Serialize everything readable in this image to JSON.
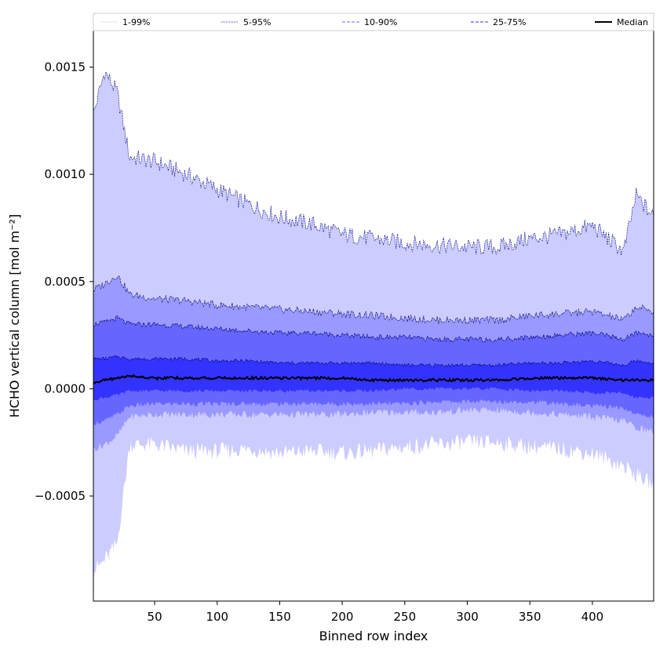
{
  "chart_data": {
    "type": "area",
    "title": "",
    "xlabel": "Binned row index",
    "ylabel": "HCHO vertical column [mol m⁻²]",
    "xlim": [
      1,
      449
    ],
    "ylim": [
      -0.00099,
      0.00167
    ],
    "xticks": [
      50,
      100,
      150,
      200,
      250,
      300,
      350,
      400
    ],
    "xtick_labels": [
      "50",
      "100",
      "150",
      "200",
      "250",
      "300",
      "350",
      "400"
    ],
    "yticks": [
      -0.0005,
      0.0,
      0.0005,
      0.001,
      0.0015
    ],
    "ytick_labels": [
      "−0.0005",
      "0.0000",
      "0.0005",
      "0.0010",
      "0.0015"
    ],
    "grid": false,
    "legend_position": "top",
    "legend": [
      {
        "label": "1-99%",
        "color": "#cccccc",
        "style": "dotted"
      },
      {
        "label": "5-95%",
        "color": "#3333cc",
        "style": "dotted"
      },
      {
        "label": "10-90%",
        "color": "#6666ff",
        "style": "dashed"
      },
      {
        "label": "25-75%",
        "color": "#3333ff",
        "style": "dashed"
      },
      {
        "label": "Median",
        "color": "#000000",
        "style": "solid"
      }
    ],
    "x": [
      1,
      10,
      20,
      30,
      50,
      75,
      100,
      125,
      150,
      175,
      200,
      225,
      250,
      275,
      300,
      325,
      350,
      375,
      400,
      425,
      435,
      449
    ],
    "series": [
      {
        "name": "1-99%",
        "fill": "#ccccff",
        "upper": [
          0.00128,
          0.00148,
          0.00138,
          0.00108,
          0.00106,
          0.001,
          0.00093,
          0.00086,
          0.0008,
          0.00077,
          0.00072,
          0.0007,
          0.00068,
          0.00067,
          0.00066,
          0.00066,
          0.0007,
          0.00072,
          0.00076,
          0.00064,
          0.0009,
          0.0008
        ],
        "lower": [
          -0.00085,
          -0.0008,
          -0.00072,
          -0.00026,
          -0.00026,
          -0.00029,
          -0.00029,
          -0.00028,
          -0.0003,
          -0.00029,
          -0.0003,
          -0.00029,
          -0.00027,
          -0.00026,
          -0.00025,
          -0.00025,
          -0.00027,
          -0.00028,
          -0.0003,
          -0.00036,
          -0.0004,
          -0.00045
        ]
      },
      {
        "name": "5-95%",
        "fill": "#9999ff",
        "upper": [
          0.00046,
          0.00049,
          0.00053,
          0.00044,
          0.00042,
          0.00041,
          0.00039,
          0.00038,
          0.00037,
          0.00036,
          0.00035,
          0.00034,
          0.00033,
          0.00032,
          0.00032,
          0.00032,
          0.00034,
          0.00035,
          0.00036,
          0.00032,
          0.00038,
          0.00036
        ],
        "lower": [
          -0.00028,
          -0.00026,
          -0.00022,
          -0.00013,
          -0.00012,
          -0.00012,
          -0.00012,
          -0.00012,
          -0.00012,
          -0.00012,
          -0.00012,
          -0.00011,
          -0.00011,
          -0.00011,
          -0.0001,
          -0.0001,
          -0.00011,
          -0.00012,
          -0.00013,
          -0.00015,
          -0.00018,
          -0.0002
        ]
      },
      {
        "name": "10-90%",
        "fill": "#6666ff",
        "upper": [
          0.0003,
          0.00031,
          0.00033,
          0.0003,
          0.0003,
          0.00029,
          0.00028,
          0.00027,
          0.00026,
          0.00026,
          0.00025,
          0.00024,
          0.00024,
          0.00023,
          0.00023,
          0.00023,
          0.00024,
          0.00025,
          0.00026,
          0.00023,
          0.00026,
          0.00025
        ],
        "lower": [
          -0.00016,
          -0.00015,
          -0.00012,
          -8e-05,
          -7e-05,
          -7e-05,
          -7e-05,
          -7e-05,
          -7e-05,
          -7e-05,
          -7e-05,
          -7e-05,
          -7e-05,
          -6e-05,
          -6e-05,
          -6e-05,
          -6e-05,
          -7e-05,
          -8e-05,
          -9e-05,
          -0.00012,
          -0.00013
        ]
      },
      {
        "name": "25-75%",
        "fill": "#3333ff",
        "upper": [
          0.00014,
          0.00014,
          0.00015,
          0.00014,
          0.00014,
          0.00014,
          0.00013,
          0.00013,
          0.00012,
          0.00012,
          0.00012,
          0.00012,
          0.00011,
          0.00011,
          0.00011,
          0.00011,
          0.00012,
          0.00012,
          0.00013,
          0.00011,
          0.00013,
          0.00012
        ],
        "lower": [
          -5e-05,
          -4e-05,
          -3e-05,
          -1e-05,
          -1e-05,
          -1e-05,
          -1e-05,
          -1e-05,
          -1e-05,
          -1e-05,
          -1e-05,
          -1e-05,
          0.0,
          0.0,
          0.0,
          0.0,
          -1e-05,
          -1e-05,
          -2e-05,
          -2e-05,
          -4e-05,
          -4e-05
        ]
      },
      {
        "name": "Median",
        "color": "#000000",
        "values": [
          3e-05,
          4e-05,
          5e-05,
          6e-05,
          5e-05,
          5e-05,
          5e-05,
          5e-05,
          5e-05,
          5e-05,
          5e-05,
          4e-05,
          4e-05,
          4e-05,
          4e-05,
          4e-05,
          5e-05,
          5e-05,
          5e-05,
          4e-05,
          4e-05,
          4e-05
        ]
      }
    ]
  }
}
